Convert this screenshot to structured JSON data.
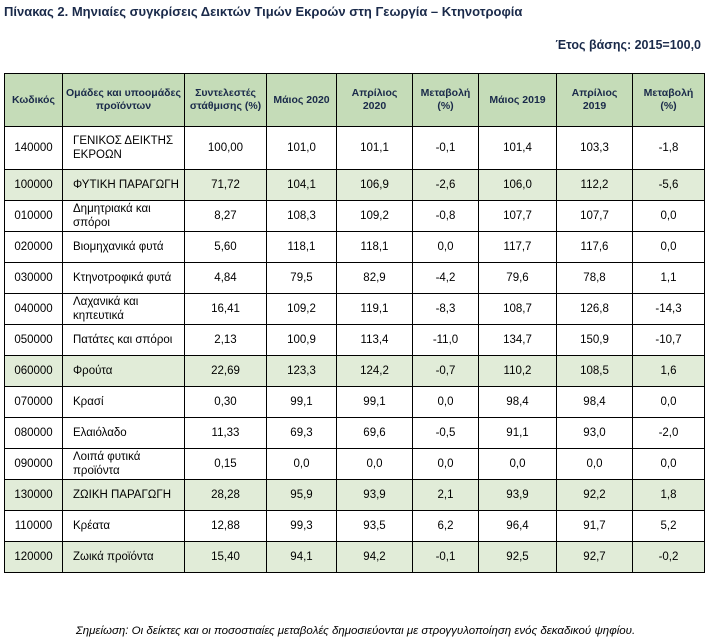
{
  "title": "Πίνακας 2. Μηνιαίες συγκρίσεις Δεικτών Τιμών Εκροών στη Γεωργία – Κτηνοτροφία",
  "base_year": "Έτος βάσης: 2015=100,0",
  "headers": [
    "Κωδικός",
    "Ομάδες και υποομάδες προϊόντων",
    "Συντελεστές στάθμισης (%)",
    "Μάιος 2020",
    "Απρίλιος 2020",
    "Μεταβολή (%)",
    "Μάιος 2019",
    "Απρίλιος 2019",
    "Μεταβολή (%)"
  ],
  "rows": [
    {
      "code": "140000",
      "name": "ΓΕΝΙΚΟΣ ΔΕΙΚΤΗΣ ΕΚΡΟΩΝ",
      "weight": "100,00",
      "may2020": "101,0",
      "apr2020": "101,1",
      "chg2020": "-0,1",
      "may2019": "101,4",
      "apr2019": "103,3",
      "chg2019": "-1,8"
    },
    {
      "code": "100000",
      "name": "ΦΥΤΙΚΗ ΠΑΡΑΓΩΓΗ",
      "weight": "71,72",
      "may2020": "104,1",
      "apr2020": "106,9",
      "chg2020": "-2,6",
      "may2019": "106,0",
      "apr2019": "112,2",
      "chg2019": "-5,6"
    },
    {
      "code": "010000",
      "name": "Δημητριακά και σπόροι",
      "weight": "8,27",
      "may2020": "108,3",
      "apr2020": "109,2",
      "chg2020": "-0,8",
      "may2019": "107,7",
      "apr2019": "107,7",
      "chg2019": "0,0"
    },
    {
      "code": "020000",
      "name": "Βιομηχανικά φυτά",
      "weight": "5,60",
      "may2020": "118,1",
      "apr2020": "118,1",
      "chg2020": "0,0",
      "may2019": "117,7",
      "apr2019": "117,6",
      "chg2019": "0,0"
    },
    {
      "code": "030000",
      "name": "Κτηνοτροφικά φυτά",
      "weight": "4,84",
      "may2020": "79,5",
      "apr2020": "82,9",
      "chg2020": "-4,2",
      "may2019": "79,6",
      "apr2019": "78,8",
      "chg2019": "1,1"
    },
    {
      "code": "040000",
      "name": "Λαχανικά και κηπευτικά",
      "weight": "16,41",
      "may2020": "109,2",
      "apr2020": "119,1",
      "chg2020": "-8,3",
      "may2019": "108,7",
      "apr2019": "126,8",
      "chg2019": "-14,3"
    },
    {
      "code": "050000",
      "name": "Πατάτες και σπόροι",
      "weight": "2,13",
      "may2020": "100,9",
      "apr2020": "113,4",
      "chg2020": "-11,0",
      "may2019": "134,7",
      "apr2019": "150,9",
      "chg2019": "-10,7"
    },
    {
      "code": "060000",
      "name": "Φρούτα",
      "weight": "22,69",
      "may2020": "123,3",
      "apr2020": "124,2",
      "chg2020": "-0,7",
      "may2019": "110,2",
      "apr2019": "108,5",
      "chg2019": "1,6"
    },
    {
      "code": "070000",
      "name": "Κρασί",
      "weight": "0,30",
      "may2020": "99,1",
      "apr2020": "99,1",
      "chg2020": "0,0",
      "may2019": "98,4",
      "apr2019": "98,4",
      "chg2019": "0,0"
    },
    {
      "code": "080000",
      "name": "Ελαιόλαδο",
      "weight": "11,33",
      "may2020": "69,3",
      "apr2020": "69,6",
      "chg2020": "-0,5",
      "may2019": "91,1",
      "apr2019": "93,0",
      "chg2019": "-2,0"
    },
    {
      "code": "090000",
      "name": "Λοιπά φυτικά προϊόντα",
      "weight": "0,15",
      "may2020": "0,0",
      "apr2020": "0,0",
      "chg2020": "0,0",
      "may2019": "0,0",
      "apr2019": "0,0",
      "chg2019": "0,0"
    },
    {
      "code": "130000",
      "name": "ΖΩΙΚΗ ΠΑΡΑΓΩΓΗ",
      "weight": "28,28",
      "may2020": "95,9",
      "apr2020": "93,9",
      "chg2020": "2,1",
      "may2019": "93,9",
      "apr2019": "92,2",
      "chg2019": "1,8"
    },
    {
      "code": "110000",
      "name": "Κρέατα",
      "weight": "12,88",
      "may2020": "99,3",
      "apr2020": "93,5",
      "chg2020": "6,2",
      "may2019": "96,4",
      "apr2019": "91,7",
      "chg2019": "5,2"
    },
    {
      "code": "120000",
      "name": "Ζωικά προϊόντα",
      "weight": "15,40",
      "may2020": "94,1",
      "apr2020": "94,2",
      "chg2020": "-0,1",
      "may2019": "92,5",
      "apr2019": "92,7",
      "chg2019": "-0,2"
    }
  ],
  "note": "Σημείωση: Οι δείκτες και οι ποσοστιαίες μεταβολές δημοσιεύονται με στρογγυλοποίηση ενός δεκαδικού ψηφίου.",
  "colors": {
    "header_fill": "#c5dcb8",
    "highlight_fill": "#e1ecd8",
    "title_text": "#1a2a4a"
  }
}
